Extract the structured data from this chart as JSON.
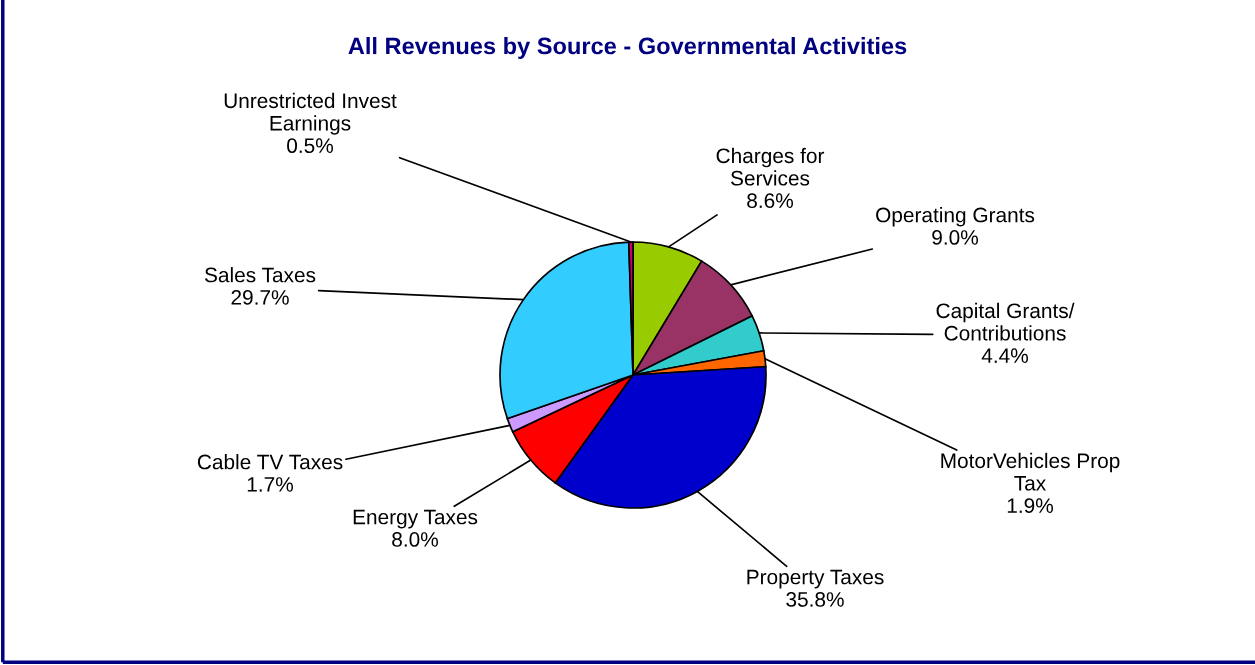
{
  "chart_data": {
    "type": "pie",
    "title": "All Revenues by Source - Governmental Activities",
    "categories": [
      "Charges for\nServices",
      "Operating Grants",
      "Capital Grants/\nContributions",
      "MotorVehicles Prop\nTax",
      "Property Taxes",
      "Energy Taxes",
      "Cable TV Taxes",
      "Sales Taxes",
      "Unrestricted Invest\nEarnings"
    ],
    "values": [
      8.6,
      9.0,
      4.4,
      1.9,
      35.8,
      8.0,
      1.7,
      29.7,
      0.5
    ],
    "colors": [
      "#99cc00",
      "#993366",
      "#33cccc",
      "#ff6600",
      "#0000cc",
      "#ff0000",
      "#cc99ff",
      "#33ccff",
      "#cc0066"
    ],
    "value_labels": [
      "8.6%",
      "9.0%",
      "4.4%",
      "1.9%",
      "35.8%",
      "8.0%",
      "1.7%",
      "29.7%",
      "0.5%"
    ]
  }
}
